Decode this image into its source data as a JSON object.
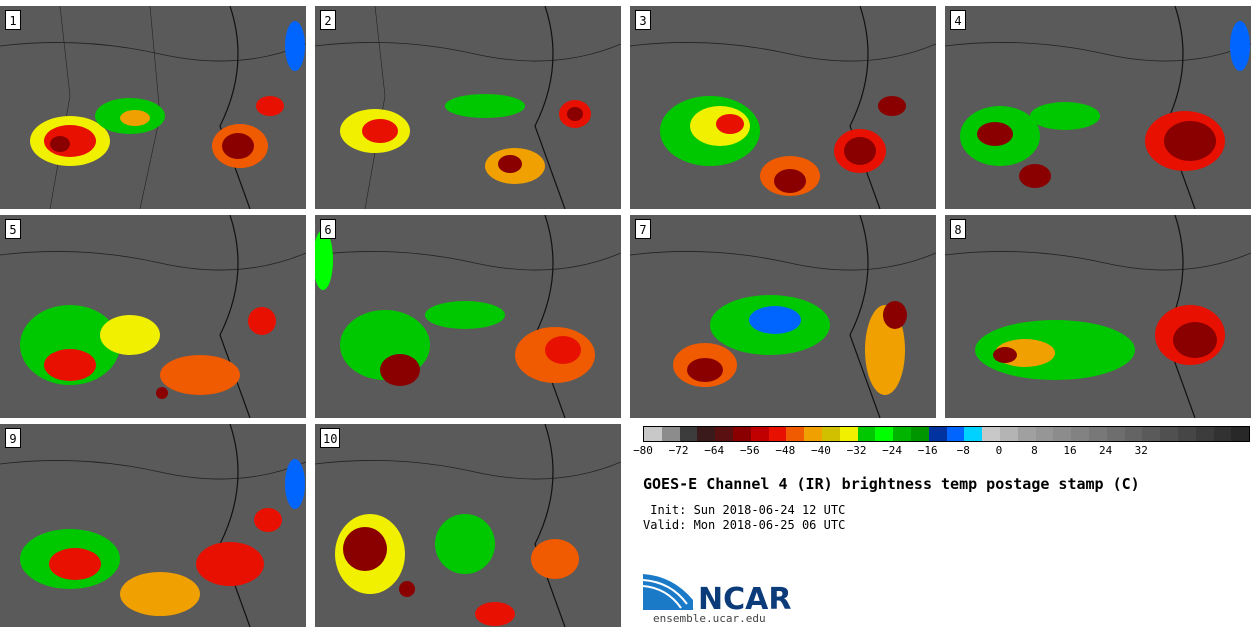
{
  "panels": [
    {
      "label": "1"
    },
    {
      "label": "2"
    },
    {
      "label": "3"
    },
    {
      "label": "4"
    },
    {
      "label": "5"
    },
    {
      "label": "6"
    },
    {
      "label": "7"
    },
    {
      "label": "8"
    },
    {
      "label": "9"
    },
    {
      "label": "10"
    }
  ],
  "colorbar": {
    "colors": [
      "#c8c8c8",
      "#8c8c8c",
      "#3c3c3c",
      "#3a1a1a",
      "#5a1010",
      "#8a0000",
      "#c00000",
      "#e81000",
      "#f05a00",
      "#f0a000",
      "#d0c000",
      "#f0f000",
      "#00c800",
      "#00ff00",
      "#00b400",
      "#009600",
      "#0032a0",
      "#0064ff",
      "#00d2ff",
      "#c8c8c8",
      "#b4b4b4",
      "#a0a0a0",
      "#969696",
      "#8c8c8c",
      "#828282",
      "#787878",
      "#6e6e6e",
      "#646464",
      "#5a5a5a",
      "#505050",
      "#464646",
      "#3c3c3c",
      "#323232",
      "#282828"
    ],
    "tick_labels": [
      "−80",
      "−72",
      "−64",
      "−56",
      "−48",
      "−40",
      "−32",
      "−24",
      "−16",
      "−8",
      "0",
      "8",
      "16",
      "24",
      "32"
    ]
  },
  "title": "GOES-E Channel 4 (IR) brightness temp postage stamp (C)",
  "init": " Init: Sun 2018-06-24 12 UTC",
  "valid": "Valid: Mon 2018-06-25 06 UTC",
  "logo": {
    "text": "NCAR",
    "url": "ensemble.ucar.edu"
  }
}
